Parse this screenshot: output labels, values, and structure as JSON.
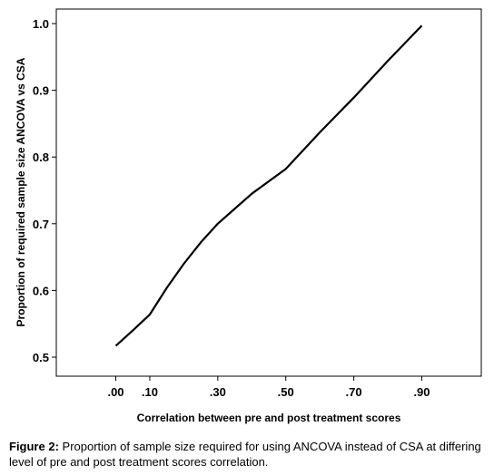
{
  "chart_data": {
    "type": "line",
    "x": [
      ".00",
      ".10",
      ".30",
      ".50",
      ".70",
      ".90"
    ],
    "x_values": [
      0.0,
      0.1,
      0.3,
      0.5,
      0.7,
      0.9
    ],
    "series": [
      {
        "x": [
          0.0,
          0.05,
          0.1,
          0.15,
          0.2,
          0.25,
          0.3,
          0.4,
          0.5,
          0.6,
          0.7,
          0.8,
          0.9
        ],
        "values": [
          0.517,
          0.54,
          0.564,
          0.604,
          0.64,
          0.672,
          0.7,
          0.745,
          0.782,
          0.837,
          0.889,
          0.944,
          0.997
        ]
      }
    ],
    "xlabel": "Correlation between pre and post treatment scores",
    "ylabel": "Proportion of required sample size ANCOVA vs CSA",
    "yticks": [
      0.5,
      0.6,
      0.7,
      0.8,
      0.9,
      1.0
    ],
    "ytick_labels": [
      "0.5",
      "0.6",
      "0.7",
      "0.8",
      "0.9",
      "1.0"
    ],
    "ylim": [
      0.5,
      1.0
    ],
    "xlim": [
      -0.175,
      1.075
    ],
    "grid": false,
    "line_color": "#000000"
  },
  "caption": {
    "label": "Figure 2:",
    "text": " Proportion of sample size required for using ANCOVA instead of CSA at differing level of pre and post treatment scores correlation."
  }
}
